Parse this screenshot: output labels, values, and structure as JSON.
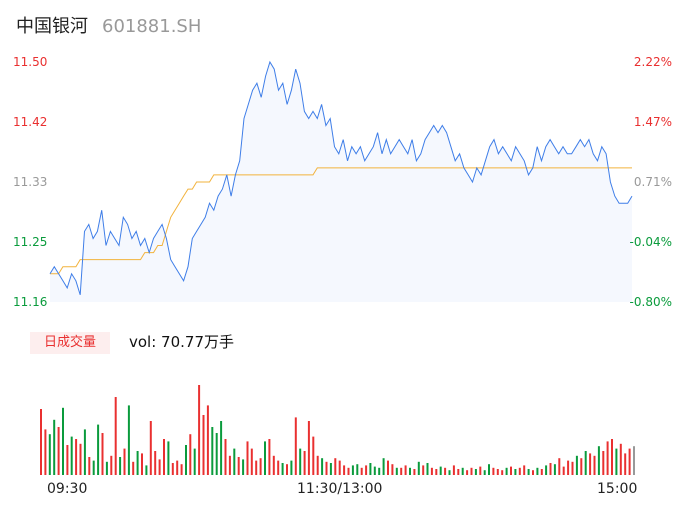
{
  "header": {
    "name": "中国银河",
    "code": "601881.SH"
  },
  "price_axis": [
    "11.50",
    "11.42",
    "11.33",
    "11.25",
    "11.16"
  ],
  "pct_axis": [
    "2.22%",
    "1.47%",
    "0.71%",
    "-0.04%",
    "-0.80%"
  ],
  "volume": {
    "tag": "日成交量",
    "text": "vol: 70.77万手"
  },
  "time_axis": [
    "09:30",
    "11:30/13:00",
    "15:00"
  ],
  "colors": {
    "price": "#3f7ee8",
    "avg": "#f2b33d",
    "up": "#e93030",
    "down": "#0a9b3c",
    "flat": "#999999"
  },
  "chart_data": {
    "type": "line",
    "x_range": [
      "09:30",
      "15:00"
    ],
    "y_range": [
      11.16,
      11.5
    ],
    "series": [
      {
        "values": [
          11.2,
          11.21,
          11.2,
          11.19,
          11.18,
          11.2,
          11.19,
          11.17,
          11.26,
          11.27,
          11.25,
          11.26,
          11.29,
          11.24,
          11.26,
          11.25,
          11.24,
          11.28,
          11.27,
          11.25,
          11.26,
          11.24,
          11.25,
          11.23,
          11.25,
          11.26,
          11.27,
          11.25,
          11.22,
          11.21,
          11.2,
          11.19,
          11.21,
          11.25,
          11.26,
          11.27,
          11.28,
          11.3,
          11.29,
          11.31,
          11.32,
          11.34,
          11.31,
          11.34,
          11.36,
          11.42,
          11.44,
          11.46,
          11.47,
          11.45,
          11.48,
          11.5,
          11.49,
          11.46,
          11.47,
          11.44,
          11.46,
          11.49,
          11.47,
          11.43,
          11.42,
          11.43,
          11.42,
          11.44,
          11.41,
          11.42,
          11.38,
          11.37,
          11.39,
          11.36,
          11.38,
          11.37,
          11.38,
          11.36,
          11.37,
          11.38,
          11.4,
          11.37,
          11.39,
          11.37,
          11.38,
          11.39,
          11.38,
          11.37,
          11.39,
          11.36,
          11.37,
          11.39,
          11.4,
          11.41,
          11.4,
          11.41,
          11.4,
          11.38,
          11.36,
          11.37,
          11.35,
          11.34,
          11.33,
          11.35,
          11.34,
          11.36,
          11.38,
          11.39,
          11.37,
          11.38,
          11.37,
          11.36,
          11.38,
          11.37,
          11.36,
          11.34,
          11.35,
          11.38,
          11.36,
          11.38,
          11.39,
          11.38,
          11.37,
          11.38,
          11.37,
          11.37,
          11.38,
          11.39,
          11.38,
          11.39,
          11.37,
          11.36,
          11.38,
          11.37,
          11.33,
          11.31,
          11.3,
          11.3,
          11.3,
          11.31
        ],
        "color": "#3f7ee8"
      },
      {
        "values": [
          11.2,
          11.2,
          11.2,
          11.21,
          11.21,
          11.21,
          11.21,
          11.22,
          11.22,
          11.22,
          11.22,
          11.22,
          11.22,
          11.22,
          11.22,
          11.22,
          11.22,
          11.22,
          11.22,
          11.22,
          11.22,
          11.22,
          11.23,
          11.23,
          11.23,
          11.24,
          11.24,
          11.26,
          11.28,
          11.29,
          11.3,
          11.31,
          11.32,
          11.32,
          11.33,
          11.33,
          11.33,
          11.33,
          11.34,
          11.34,
          11.34,
          11.34,
          11.34,
          11.34,
          11.34,
          11.34,
          11.34,
          11.34,
          11.34,
          11.34,
          11.34,
          11.34,
          11.34,
          11.34,
          11.34,
          11.34,
          11.34,
          11.34,
          11.34,
          11.34,
          11.34,
          11.34,
          11.35,
          11.35,
          11.35,
          11.35,
          11.35,
          11.35,
          11.35,
          11.35,
          11.35,
          11.35,
          11.35,
          11.35,
          11.35,
          11.35,
          11.35,
          11.35,
          11.35,
          11.35,
          11.35,
          11.35,
          11.35,
          11.35,
          11.35,
          11.35,
          11.35,
          11.35,
          11.35,
          11.35,
          11.35,
          11.35,
          11.35,
          11.35,
          11.35,
          11.35,
          11.35,
          11.35,
          11.35,
          11.35,
          11.35,
          11.35,
          11.35,
          11.35,
          11.35,
          11.35,
          11.35,
          11.35,
          11.35,
          11.35,
          11.35,
          11.35,
          11.35,
          11.35,
          11.35,
          11.35,
          11.35,
          11.35,
          11.35,
          11.35,
          11.35,
          11.35,
          11.35,
          11.35,
          11.35,
          11.35,
          11.35,
          11.35,
          11.35,
          11.35,
          11.35,
          11.35,
          11.35,
          11.35,
          11.35,
          11.35
        ],
        "color": "#f2b33d"
      }
    ],
    "volume": {
      "values": [
        55,
        38,
        34,
        46,
        40,
        56,
        25,
        32,
        30,
        26,
        38,
        15,
        12,
        42,
        35,
        11,
        16,
        65,
        15,
        22,
        58,
        11,
        20,
        18,
        8,
        45,
        20,
        13,
        30,
        28,
        10,
        12,
        9,
        25,
        34,
        22,
        75,
        50,
        58,
        40,
        35,
        45,
        30,
        16,
        22,
        15,
        13,
        28,
        22,
        12,
        14,
        28,
        30,
        16,
        12,
        10,
        9,
        12,
        48,
        22,
        20,
        45,
        32,
        16,
        14,
        11,
        10,
        14,
        12,
        8,
        6,
        8,
        9,
        6,
        8,
        10,
        7,
        6,
        14,
        12,
        9,
        6,
        6,
        8,
        6,
        5,
        11,
        8,
        10,
        6,
        5,
        7,
        6,
        4,
        8,
        5,
        6,
        4,
        6,
        5,
        7,
        4,
        9,
        6,
        5,
        4,
        6,
        7,
        5,
        6,
        8,
        5,
        4,
        6,
        5,
        8,
        10,
        9,
        14,
        7,
        12,
        11,
        16,
        14,
        20,
        18,
        16,
        24,
        20,
        28,
        30,
        22,
        26,
        18,
        22,
        24
      ],
      "direction": [
        "up",
        "up",
        "down",
        "down",
        "up",
        "down",
        "up",
        "down",
        "up",
        "up",
        "down",
        "up",
        "down",
        "down",
        "up",
        "down",
        "up",
        "up",
        "down",
        "up",
        "down",
        "up",
        "down",
        "up",
        "down",
        "up",
        "up",
        "up",
        "up",
        "down",
        "up",
        "up",
        "up",
        "down",
        "up",
        "down",
        "up",
        "up",
        "up",
        "down",
        "down",
        "down",
        "up",
        "up",
        "down",
        "up",
        "down",
        "up",
        "up",
        "up",
        "up",
        "down",
        "up",
        "up",
        "up",
        "down",
        "up",
        "down",
        "up",
        "down",
        "up",
        "up",
        "up",
        "up",
        "down",
        "up",
        "down",
        "up",
        "up",
        "up",
        "up",
        "down",
        "down",
        "up",
        "up",
        "down",
        "down",
        "down",
        "down",
        "up",
        "up",
        "down",
        "up",
        "up",
        "down",
        "up",
        "down",
        "up",
        "down",
        "up",
        "up",
        "down",
        "up",
        "down",
        "up",
        "up",
        "down",
        "up",
        "up",
        "down",
        "up",
        "down",
        "down",
        "up",
        "up",
        "up",
        "down",
        "up",
        "down",
        "up",
        "up",
        "down",
        "up",
        "down",
        "up",
        "down",
        "up",
        "down",
        "up",
        "up",
        "up",
        "up",
        "down",
        "up",
        "down",
        "up",
        "up",
        "down",
        "up",
        "up",
        "up",
        "down",
        "up",
        "up",
        "up",
        "flat"
      ]
    }
  }
}
